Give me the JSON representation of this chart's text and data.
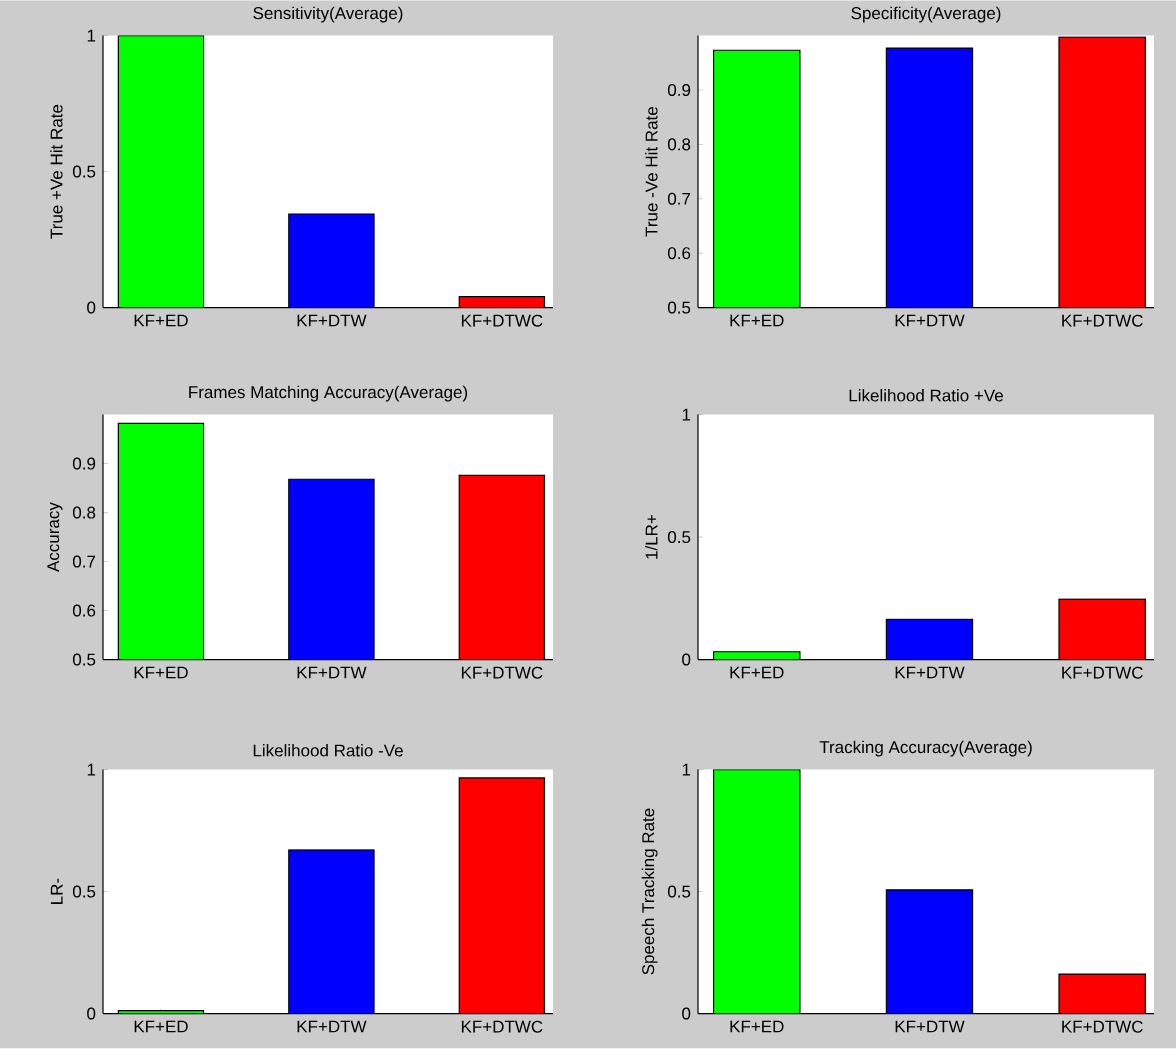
{
  "chart_data": [
    {
      "type": "bar",
      "title": "Sensitivity(Average)",
      "ylabel": "True +Ve Hit Rate",
      "categories": [
        "KF+ED",
        "KF+DTW",
        "KF+DTWC"
      ],
      "values": [
        1.0,
        0.344,
        0.04
      ],
      "colors": [
        "#00ff00",
        "#0000ff",
        "#ff0000"
      ],
      "ylim": [
        0,
        1
      ],
      "yticks": [
        0,
        0.5,
        1
      ]
    },
    {
      "type": "bar",
      "title": "Specificity(Average)",
      "ylabel": "True -Ve Hit Rate",
      "categories": [
        "KF+ED",
        "KF+DTW",
        "KF+DTWC"
      ],
      "values": [
        0.973,
        0.977,
        0.997
      ],
      "colors": [
        "#00ff00",
        "#0000ff",
        "#ff0000"
      ],
      "ylim": [
        0.5,
        1
      ],
      "yticks": [
        0.5,
        0.6,
        0.7,
        0.8,
        0.9
      ]
    },
    {
      "type": "bar",
      "title": "Frames Matching Accuracy(Average)",
      "ylabel": "Accuracy",
      "categories": [
        "KF+ED",
        "KF+DTW",
        "KF+DTWC"
      ],
      "values": [
        0.982,
        0.868,
        0.876
      ],
      "colors": [
        "#00ff00",
        "#0000ff",
        "#ff0000"
      ],
      "ylim": [
        0.5,
        1
      ],
      "yticks": [
        0.5,
        0.6,
        0.7,
        0.8,
        0.9
      ]
    },
    {
      "type": "bar",
      "title": "Likelihood Ratio +Ve",
      "ylabel": "1/LR+",
      "categories": [
        "KF+ED",
        "KF+DTW",
        "KF+DTWC"
      ],
      "values": [
        0.032,
        0.164,
        0.247
      ],
      "colors": [
        "#00ff00",
        "#0000ff",
        "#ff0000"
      ],
      "ylim": [
        0,
        1
      ],
      "yticks": [
        0,
        0.5,
        1
      ]
    },
    {
      "type": "bar",
      "title": "Likelihood Ratio -Ve",
      "ylabel": "LR-",
      "categories": [
        "KF+ED",
        "KF+DTW",
        "KF+DTWC"
      ],
      "values": [
        0.012,
        0.671,
        0.966
      ],
      "colors": [
        "#00ff00",
        "#0000ff",
        "#ff0000"
      ],
      "ylim": [
        0,
        1
      ],
      "yticks": [
        0,
        0.5,
        1
      ]
    },
    {
      "type": "bar",
      "title": "Tracking Accuracy(Average)",
      "ylabel": "Speech Tracking Rate",
      "categories": [
        "KF+ED",
        "KF+DTW",
        "KF+DTWC"
      ],
      "values": [
        1.0,
        0.507,
        0.162
      ],
      "colors": [
        "#00ff00",
        "#0000ff",
        "#ff0000"
      ],
      "ylim": [
        0,
        1
      ],
      "yticks": [
        0,
        0.5,
        1
      ]
    }
  ]
}
